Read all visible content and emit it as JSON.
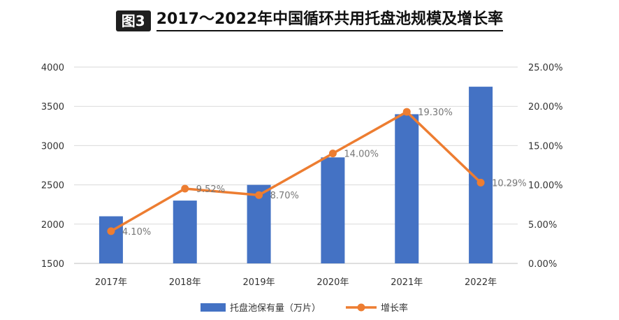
{
  "figure": {
    "badge": "图3",
    "title": "2017～2022年中国循环共用托盘池规模及增长率"
  },
  "chart_data": {
    "type": "bar",
    "categories": [
      "2017年",
      "2018年",
      "2019年",
      "2020年",
      "2021年",
      "2022年"
    ],
    "series": [
      {
        "name": "托盘池保有量（万片）",
        "type": "bar",
        "axis": "left",
        "values": [
          2100,
          2300,
          2500,
          2850,
          3400,
          3750
        ],
        "color": "#4472c4"
      },
      {
        "name": "增长率",
        "type": "line",
        "axis": "right",
        "values": [
          4.1,
          9.52,
          8.7,
          14.0,
          19.3,
          10.29
        ],
        "labels": [
          "4.10%",
          "9.52%",
          "8.70%",
          "14.00%",
          "19.30%",
          "10.29%"
        ],
        "color": "#ed7d31"
      }
    ],
    "y_left": {
      "min": 1500,
      "max": 4000,
      "ticks": [
        "1500",
        "2000",
        "2500",
        "3000",
        "3500",
        "4000"
      ]
    },
    "y_right": {
      "min": 0,
      "max": 25,
      "ticks": [
        "0.00%",
        "5.00%",
        "10.00%",
        "15.00%",
        "20.00%",
        "25.00%"
      ]
    },
    "grid": true,
    "legend": "bottom"
  }
}
